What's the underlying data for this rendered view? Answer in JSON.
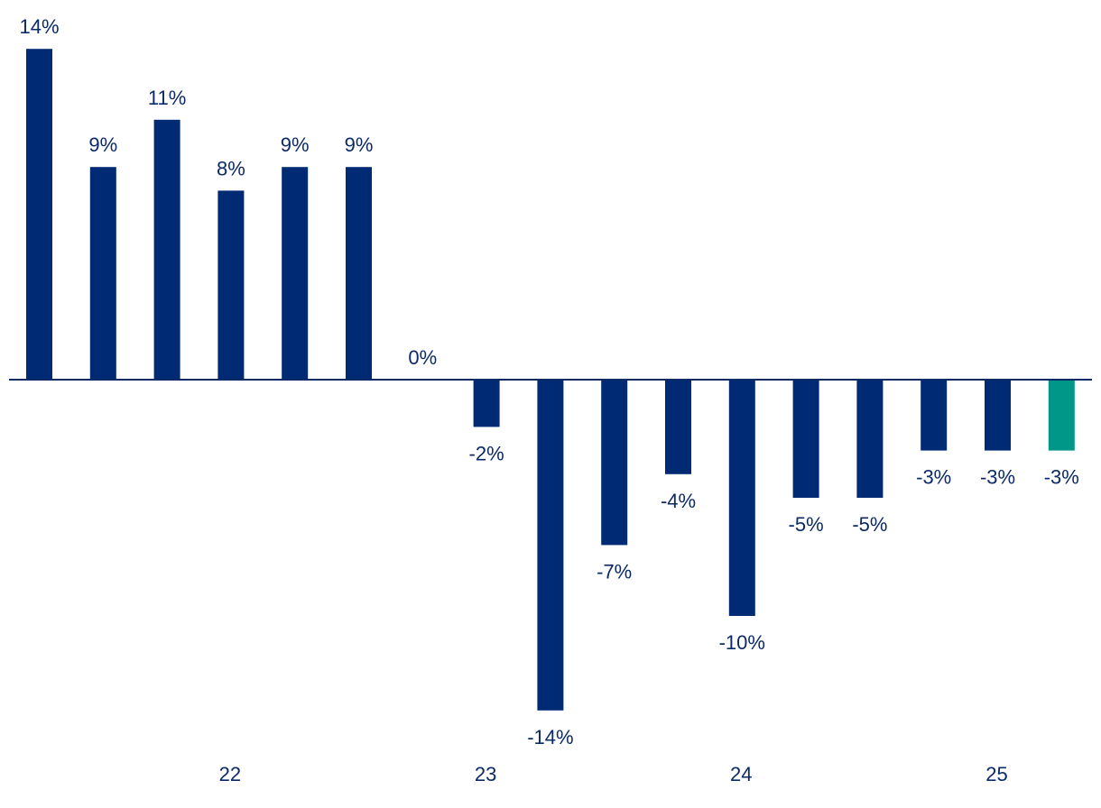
{
  "chart_data": {
    "type": "bar",
    "title": "",
    "xlabel": "",
    "ylabel": "",
    "value_suffix": "%",
    "values": [
      14,
      9,
      11,
      8,
      9,
      9,
      0,
      -2,
      -14,
      -7,
      -4,
      -10,
      -5,
      -5,
      -3,
      -3,
      -3
    ],
    "value_labels": [
      "14%",
      "9%",
      "11%",
      "8%",
      "9%",
      "9%",
      "0%",
      "-2%",
      "-14%",
      "-7%",
      "-4%",
      "-10%",
      "-5%",
      "-5%",
      "-3%",
      "-3%",
      "-3%"
    ],
    "x_tick_labels": [
      {
        "label": "22",
        "bar_index": 3
      },
      {
        "label": "23",
        "bar_index": 7
      },
      {
        "label": "24",
        "bar_index": 11
      },
      {
        "label": "25",
        "bar_index": 15
      }
    ],
    "ylim": [
      -14,
      14
    ],
    "grid": false,
    "legend": "none",
    "colors": {
      "bar": "#002a74",
      "highlight_bar": "#009688",
      "axis": "#0b2a66",
      "label": "#0b2a66"
    },
    "highlight_index": 16
  }
}
